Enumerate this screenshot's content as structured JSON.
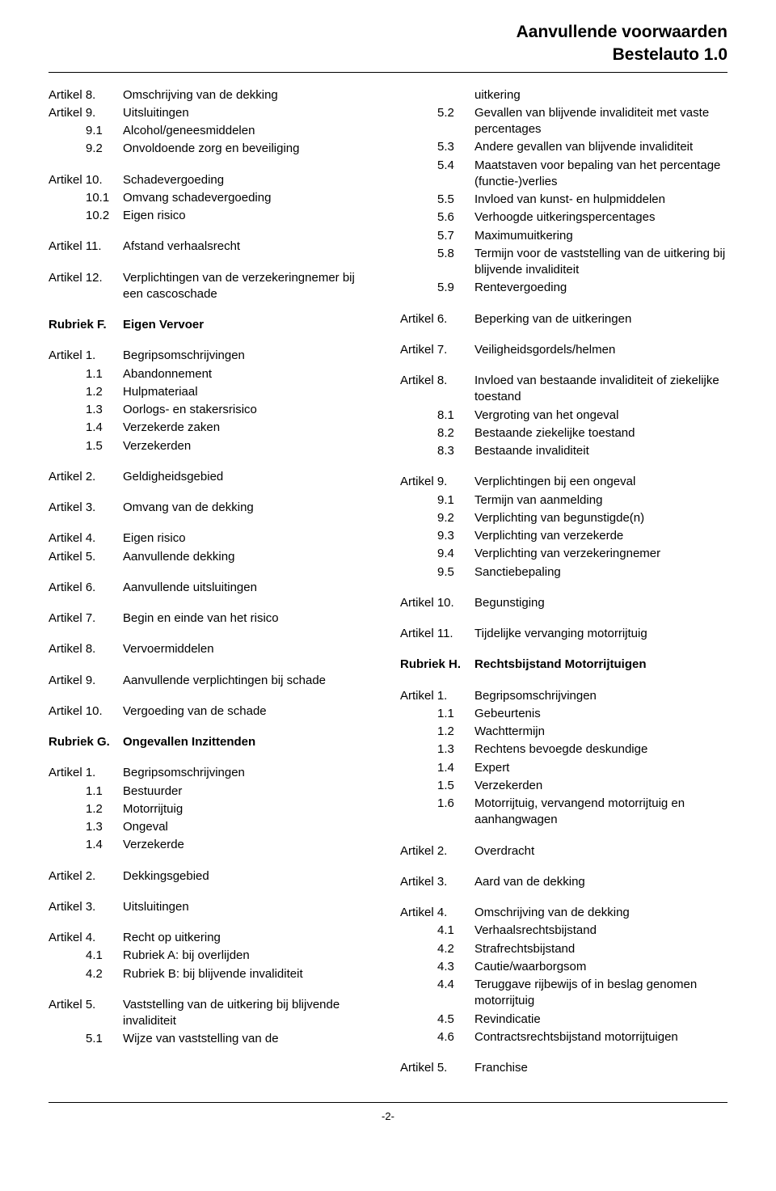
{
  "header": {
    "line1": "Aanvullende voorwaarden",
    "line2": "Bestelauto 1.0"
  },
  "page_number": "-2-",
  "left": [
    {
      "n": "Artikel 8.",
      "t": "Omschrijving van de dekking"
    },
    {
      "n": "Artikel 9.",
      "t": "Uitsluitingen"
    },
    {
      "n": "9.1",
      "t": "Alcohol/geneesmiddelen",
      "sub": true
    },
    {
      "n": "9.2",
      "t": "Onvoldoende zorg en beveiliging",
      "sub": true
    },
    {
      "gap": true
    },
    {
      "n": "Artikel 10.",
      "t": "Schadevergoeding"
    },
    {
      "n": "10.1",
      "t": "Omvang schadevergoeding",
      "sub": true
    },
    {
      "n": "10.2",
      "t": "Eigen risico",
      "sub": true
    },
    {
      "gap": true
    },
    {
      "n": "Artikel 11.",
      "t": "Afstand verhaalsrecht"
    },
    {
      "gap": true
    },
    {
      "n": "Artikel 12.",
      "t": "Verplichtingen van de verzekeringnemer bij een cascoschade"
    },
    {
      "gap": true
    },
    {
      "n": "Rubriek F.",
      "t": "Eigen Vervoer",
      "bold": true
    },
    {
      "gap": true
    },
    {
      "n": "Artikel 1.",
      "t": "Begripsomschrijvingen"
    },
    {
      "n": "1.1",
      "t": "Abandonnement",
      "sub": true
    },
    {
      "n": "1.2",
      "t": "Hulpmateriaal",
      "sub": true
    },
    {
      "n": "1.3",
      "t": "Oorlogs- en stakersrisico",
      "sub": true
    },
    {
      "n": "1.4",
      "t": "Verzekerde zaken",
      "sub": true
    },
    {
      "n": "1.5",
      "t": "Verzekerden",
      "sub": true
    },
    {
      "gap": true
    },
    {
      "n": "Artikel 2.",
      "t": "Geldigheidsgebied"
    },
    {
      "gap": true
    },
    {
      "n": "Artikel 3.",
      "t": "Omvang van de dekking"
    },
    {
      "gap": true
    },
    {
      "n": "Artikel 4.",
      "t": "Eigen risico"
    },
    {
      "n": "Artikel 5.",
      "t": "Aanvullende dekking"
    },
    {
      "gap": true
    },
    {
      "n": "Artikel 6.",
      "t": "Aanvullende uitsluitingen"
    },
    {
      "gap": true
    },
    {
      "n": "Artikel 7.",
      "t": "Begin en einde van het risico"
    },
    {
      "gap": true
    },
    {
      "n": "Artikel 8.",
      "t": "Vervoermiddelen"
    },
    {
      "gap": true
    },
    {
      "n": "Artikel 9.",
      "t": "Aanvullende verplichtingen bij schade"
    },
    {
      "gap": true
    },
    {
      "n": "Artikel 10.",
      "t": "Vergoeding van de schade"
    },
    {
      "gap": true
    },
    {
      "n": "Rubriek G.",
      "t": "Ongevallen Inzittenden",
      "bold": true
    },
    {
      "gap": true
    },
    {
      "n": "Artikel  1.",
      "t": "Begripsomschrijvingen"
    },
    {
      "n": "1.1",
      "t": "Bestuurder",
      "sub": true
    },
    {
      "n": "1.2",
      "t": "Motorrijtuig",
      "sub": true
    },
    {
      "n": "1.3",
      "t": "Ongeval",
      "sub": true
    },
    {
      "n": "1.4",
      "t": "Verzekerde",
      "sub": true
    },
    {
      "gap": true
    },
    {
      "n": "Artikel  2.",
      "t": "Dekkingsgebied"
    },
    {
      "gap": true
    },
    {
      "n": "Artikel  3.",
      "t": "Uitsluitingen"
    },
    {
      "gap": true
    },
    {
      "n": "Artikel  4.",
      "t": "Recht op uitkering"
    },
    {
      "n": "4.1",
      "t": "Rubriek A: bij overlijden",
      "sub": true
    },
    {
      "n": "4.2",
      "t": "Rubriek B: bij blijvende invaliditeit",
      "sub": true
    },
    {
      "gap": true
    },
    {
      "n": "Artikel  5.",
      "t": "Vaststelling van de uitkering bij blijvende invaliditeit"
    },
    {
      "n": "5.1",
      "t": "Wijze van vaststelling van de",
      "sub": true
    }
  ],
  "right": [
    {
      "n": "",
      "t": "uitkering",
      "sub": true
    },
    {
      "n": "5.2",
      "t": "Gevallen van blijvende invaliditeit met vaste percentages",
      "sub": true
    },
    {
      "n": "5.3",
      "t": "Andere gevallen van blijvende invaliditeit",
      "sub": true
    },
    {
      "n": "5.4",
      "t": "Maatstaven voor bepaling van het percentage (functie-)verlies",
      "sub": true
    },
    {
      "n": "5.5",
      "t": "Invloed van kunst- en hulpmiddelen",
      "sub": true
    },
    {
      "n": "5.6",
      "t": "Verhoogde uitkeringspercentages",
      "sub": true
    },
    {
      "n": "5.7",
      "t": "Maximumuitkering",
      "sub": true
    },
    {
      "n": "5.8",
      "t": "Termijn voor de vaststelling van de uitkering bij blijvende invaliditeit",
      "sub": true
    },
    {
      "n": "5.9",
      "t": "Rentevergoeding",
      "sub": true
    },
    {
      "gap": true
    },
    {
      "n": "Artikel  6.",
      "t": "Beperking van de uitkeringen"
    },
    {
      "gap": true
    },
    {
      "n": "Artikel  7.",
      "t": "Veiligheidsgordels/helmen"
    },
    {
      "gap": true
    },
    {
      "n": "Artikel  8.",
      "t": "Invloed van bestaande invaliditeit of ziekelijke toestand"
    },
    {
      "n": "8.1",
      "t": "Vergroting van het ongeval",
      "sub": true
    },
    {
      "n": "8.2",
      "t": "Bestaande ziekelijke toestand",
      "sub": true
    },
    {
      "n": "8.3",
      "t": "Bestaande invaliditeit",
      "sub": true
    },
    {
      "gap": true
    },
    {
      "n": "Artikel  9.",
      "t": "Verplichtingen bij een ongeval"
    },
    {
      "n": "9.1",
      "t": "Termijn van aanmelding",
      "sub": true
    },
    {
      "n": "9.2",
      "t": "Verplichting van begunstigde(n)",
      "sub": true
    },
    {
      "n": "9.3",
      "t": "Verplichting van verzekerde",
      "sub": true
    },
    {
      "n": "9.4",
      "t": "Verplichting van verzekeringnemer",
      "sub": true
    },
    {
      "n": "9.5",
      "t": "Sanctiebepaling",
      "sub": true
    },
    {
      "gap": true
    },
    {
      "n": "Artikel  10.",
      "t": "Begunstiging"
    },
    {
      "gap": true
    },
    {
      "n": "Artikel  11.",
      "t": "Tijdelijke vervanging motorrijtuig"
    },
    {
      "gap": true
    },
    {
      "n": "Rubriek H.",
      "t": "Rechtsbijstand Motorrijtuigen",
      "bold": true
    },
    {
      "gap": true
    },
    {
      "n": "Artikel  1.",
      "t": "Begripsomschrijvingen"
    },
    {
      "n": "1.1",
      "t": "Gebeurtenis",
      "sub": true
    },
    {
      "n": "1.2",
      "t": "Wachttermijn",
      "sub": true
    },
    {
      "n": "1.3",
      "t": "Rechtens bevoegde deskundige",
      "sub": true
    },
    {
      "n": "1.4",
      "t": "Expert",
      "sub": true
    },
    {
      "n": "1.5",
      "t": "Verzekerden",
      "sub": true
    },
    {
      "n": "1.6",
      "t": "Motorrijtuig, vervangend motorrijtuig en aanhangwagen",
      "sub": true
    },
    {
      "gap": true
    },
    {
      "n": "Artikel  2.",
      "t": "Overdracht"
    },
    {
      "gap": true
    },
    {
      "n": "Artikel  3.",
      "t": "Aard van de dekking"
    },
    {
      "gap": true
    },
    {
      "n": "Artikel  4.",
      "t": "Omschrijving van de dekking"
    },
    {
      "n": "4.1",
      "t": "Verhaalsrechtsbijstand",
      "sub": true
    },
    {
      "n": "4.2",
      "t": "Strafrechtsbijstand",
      "sub": true
    },
    {
      "n": "4.3",
      "t": "Cautie/waarborgsom",
      "sub": true
    },
    {
      "n": "4.4",
      "t": "Teruggave rijbewijs of in beslag genomen motorrijtuig",
      "sub": true
    },
    {
      "n": "4.5",
      "t": "Revindicatie",
      "sub": true
    },
    {
      "n": "4.6",
      "t": "Contractsrechtsbijstand motorrijtuigen",
      "sub": true
    },
    {
      "gap": true
    },
    {
      "n": "Artikel  5.",
      "t": "Franchise"
    }
  ]
}
